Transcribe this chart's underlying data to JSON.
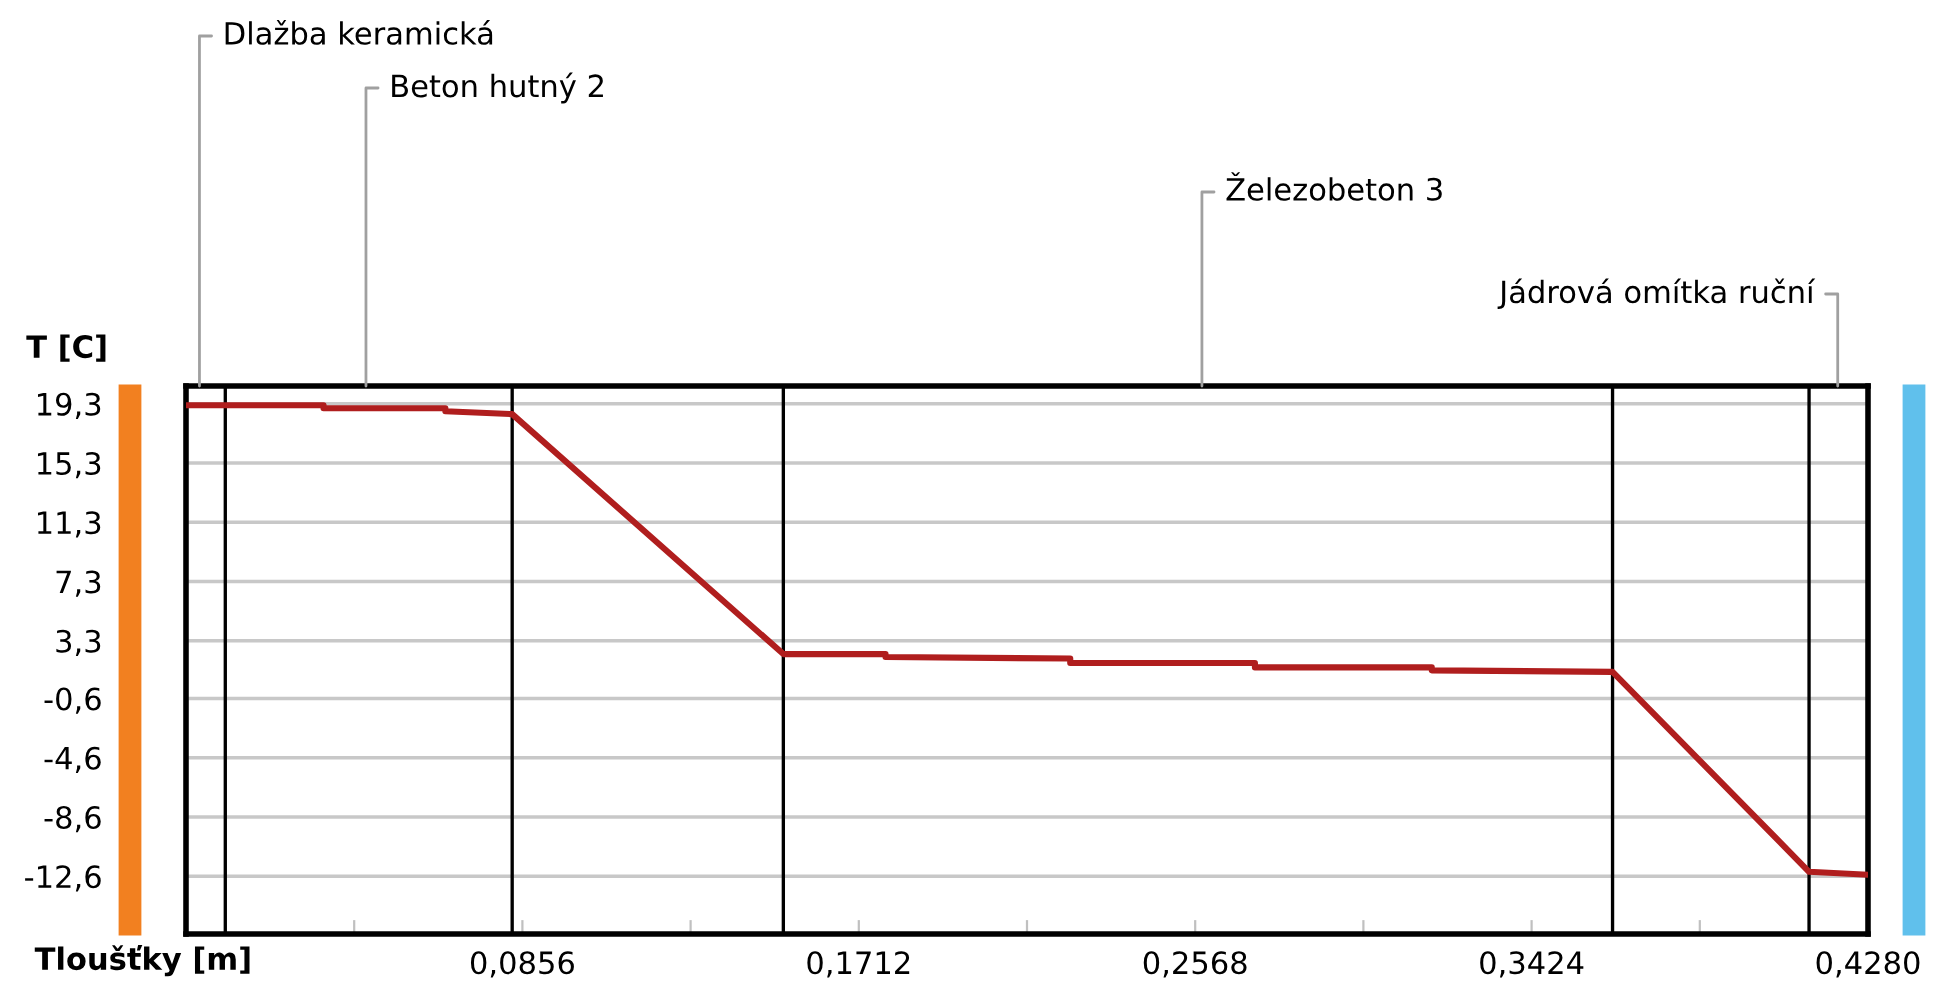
{
  "chart_data": {
    "type": "line",
    "xlabel": "Tloušťky [m]",
    "ylabel": "T [C]",
    "series": [
      {
        "color": "#b01e1e",
        "x": [
          0,
          0.01,
          0.035,
          0.035,
          0.066,
          0.066,
          0.083,
          0.152,
          0.178,
          0.178,
          0.225,
          0.225,
          0.272,
          0.272,
          0.317,
          0.317,
          0.363,
          0.413,
          0.428
        ],
        "values": [
          19.2,
          19.2,
          19.2,
          19.0,
          19.0,
          18.8,
          18.6,
          2.4,
          2.4,
          2.2,
          2.1,
          1.8,
          1.8,
          1.5,
          1.5,
          1.3,
          1.2,
          -12.3,
          -12.5
        ]
      }
    ],
    "xlim": [
      0,
      0.428
    ],
    "ylim": [
      -16.5,
      20.5
    ],
    "xticks": [
      {
        "value": 0,
        "label": null
      },
      {
        "value": 0.0428,
        "label": null
      },
      {
        "value": 0.0856,
        "label": "0,0856"
      },
      {
        "value": 0.1284,
        "label": null
      },
      {
        "value": 0.1712,
        "label": "0,1712"
      },
      {
        "value": 0.214,
        "label": null
      },
      {
        "value": 0.2568,
        "label": "0,2568"
      },
      {
        "value": 0.2996,
        "label": null
      },
      {
        "value": 0.3424,
        "label": "0,3424"
      },
      {
        "value": 0.3852,
        "label": null
      },
      {
        "value": 0.428,
        "label": "0,4280"
      }
    ],
    "yticks": [
      {
        "value": 19.3,
        "label": "19,3"
      },
      {
        "value": 15.3,
        "label": "15,3"
      },
      {
        "value": 11.3,
        "label": "11,3"
      },
      {
        "value": 7.3,
        "label": "7,3"
      },
      {
        "value": 3.3,
        "label": "3,3"
      },
      {
        "value": -0.6,
        "label": "-0,6"
      },
      {
        "value": -4.6,
        "label": "-4,6"
      },
      {
        "value": -8.6,
        "label": "-8,6"
      },
      {
        "value": -12.6,
        "label": "-12,6"
      }
    ],
    "grid": "y",
    "marker": "none",
    "line_style": "solid",
    "ref_lines": [
      {
        "axis": "x",
        "value": 0.01,
        "color": "#000000"
      },
      {
        "axis": "x",
        "value": 0.083,
        "color": "#000000"
      },
      {
        "axis": "x",
        "value": 0.152,
        "color": "#000000"
      },
      {
        "axis": "x",
        "value": 0.363,
        "color": "#000000"
      },
      {
        "axis": "x",
        "value": 0.413,
        "color": "#000000"
      }
    ],
    "annotations": [
      "Dlažba keramická",
      "Beton hutný 2",
      "Železobeton 3",
      "Jádrová omítka ruční"
    ]
  }
}
